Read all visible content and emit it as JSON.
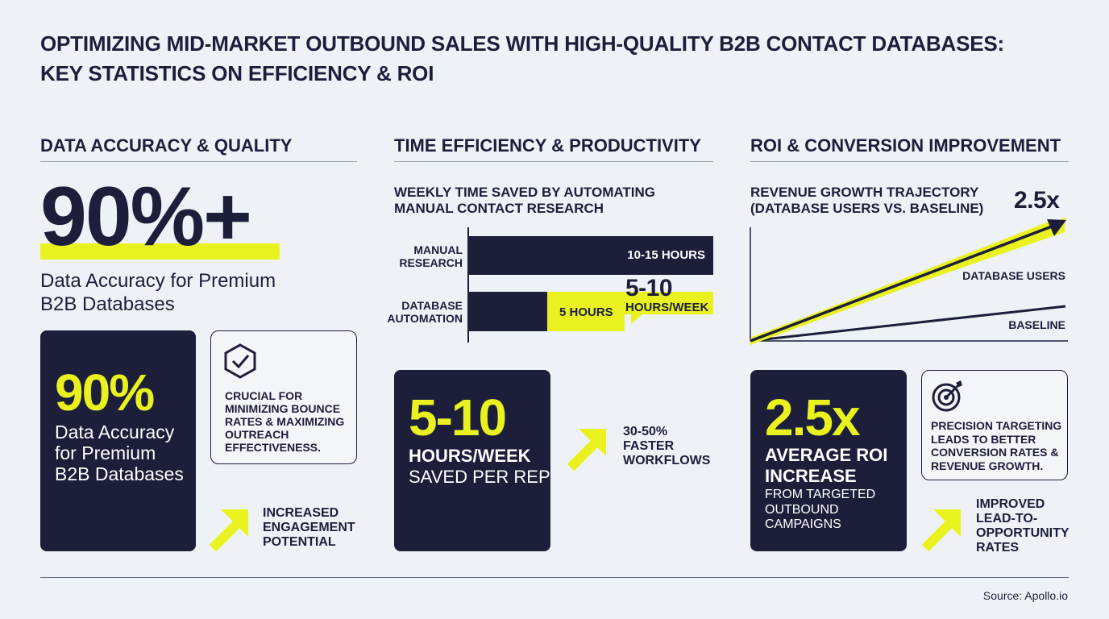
{
  "title_lines": [
    "OPTIMIZING MID-MARKET OUTBOUND SALES WITH HIGH-QUALITY B2B CONTACT DATABASES:",
    "KEY STATISTICS ON EFFICIENCY & ROI"
  ],
  "colors": {
    "navy": "#1c1e3a",
    "yellow": "#e9f21f",
    "background": "#eef1f6"
  },
  "col1": {
    "header": "DATA ACCURACY & QUALITY",
    "hero_value": "90%+",
    "hero_caption_lines": [
      "Data Accuracy for Premium",
      "B2B Databases"
    ],
    "card": {
      "value": "90%",
      "lines": [
        "Data Accuracy",
        "for Premium",
        "B2B Databases"
      ]
    },
    "callout": {
      "icon": "shield-check-icon",
      "lines": [
        "CRUCIAL FOR",
        "MINIMIZING BOUNCE",
        "RATES & MAXIMIZING",
        "OUTREACH",
        "EFFECTIVENESS."
      ]
    },
    "note": {
      "icon": "arrow-up-right-icon",
      "lines": [
        "INCREASED",
        "ENGAGEMENT",
        "POTENTIAL"
      ]
    }
  },
  "col2": {
    "header": "TIME EFFICIENCY & PRODUCTIVITY",
    "chart_data": {
      "type": "bar",
      "title_lines": [
        "WEEKLY TIME SAVED BY AUTOMATING",
        "MANUAL CONTACT RESEARCH"
      ],
      "categories": [
        [
          "MANUAL",
          "RESEARCH"
        ],
        [
          "DATABASE",
          "AUTOMATION"
        ]
      ],
      "bar_labels": [
        "10-15 HOURS",
        "5 HOURS"
      ],
      "saved_label": {
        "value": "5-10",
        "unit": "HOURS/WEEK"
      }
    },
    "card": {
      "value": "5-10",
      "line1": "HOURS/WEEK",
      "line2": "SAVED PER REP"
    },
    "note": {
      "icon": "arrow-up-right-icon",
      "lines": [
        "30-50%",
        "FASTER",
        "WORKFLOWS"
      ]
    }
  },
  "col3": {
    "header": "ROI & CONVERSION IMPROVEMENT",
    "chart_data": {
      "type": "line",
      "title_lines": [
        "REVENUE GROWTH TRAJECTORY",
        "(DATABASE USERS VS. BASELINE)"
      ],
      "end_label": "2.5x",
      "series": [
        {
          "name": "DATABASE USERS"
        },
        {
          "name": "BASELINE"
        }
      ]
    },
    "card": {
      "value": "2.5x",
      "bold_lines": [
        "AVERAGE ROI",
        "INCREASE"
      ],
      "lines": [
        "FROM TARGETED",
        "OUTBOUND",
        "CAMPAIGNS"
      ]
    },
    "callout": {
      "icon": "target-icon",
      "lines": [
        "PRECISION TARGETING",
        "LEADS TO BETTER",
        "CONVERSION RATES &",
        "REVENUE GROWTH."
      ]
    },
    "note": {
      "icon": "arrow-up-right-icon",
      "lines": [
        "IMPROVED",
        "LEAD-TO-",
        "OPPORTUNITY",
        "RATES"
      ]
    }
  },
  "footer": {
    "source": "Source: Apollo.io"
  }
}
